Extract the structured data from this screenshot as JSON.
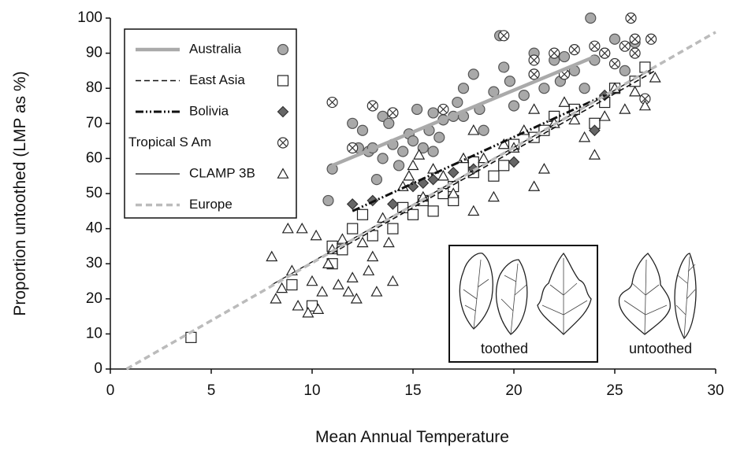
{
  "chart_data": {
    "type": "scatter",
    "xlabel": "Mean Annual Temperature",
    "ylabel": "Proportion untoothed (LMP as %)",
    "xlim": [
      0,
      30
    ],
    "ylim": [
      0,
      100
    ],
    "xticks": [
      0,
      5,
      10,
      15,
      20,
      25,
      30
    ],
    "yticks": [
      0,
      10,
      20,
      30,
      40,
      50,
      60,
      70,
      80,
      90,
      100
    ],
    "annotations": [
      "toothed",
      "untoothed"
    ],
    "series": [
      {
        "name": "Australia",
        "marker": "circle",
        "color": "#a9a9a9",
        "edge_color": "#555555",
        "line_color": "#aaaaaa",
        "line_style": "solid-thick",
        "x": [
          10.8,
          11,
          12,
          12.3,
          12.5,
          12.8,
          13,
          13.2,
          13.5,
          13.5,
          13.8,
          14,
          14,
          14.3,
          14.5,
          14.8,
          15,
          15.2,
          15.5,
          15.8,
          16,
          16,
          16.3,
          16.5,
          17,
          17.2,
          17.5,
          17.5,
          18,
          18.3,
          18.5,
          19,
          19.3,
          19.5,
          19.8,
          20,
          20.5,
          21,
          21,
          21.5,
          22,
          22.3,
          22.5,
          23,
          23.5,
          23.8,
          24,
          24.5,
          25,
          25.5,
          26
        ],
        "y": [
          48,
          57,
          70,
          63,
          68,
          62,
          63,
          54,
          60,
          72,
          70,
          64,
          73,
          58,
          62,
          67,
          65,
          74,
          63,
          68,
          73,
          62,
          66,
          71,
          72,
          76,
          80,
          72,
          84,
          74,
          68,
          79,
          95,
          86,
          82,
          75,
          78,
          90,
          84,
          80,
          88,
          82,
          89,
          85,
          80,
          100,
          88,
          90,
          94,
          85,
          93
        ],
        "fit_x": [
          11,
          24
        ],
        "fit_y": [
          58,
          89
        ]
      },
      {
        "name": "East Asia",
        "marker": "square",
        "color": "#ffffff",
        "edge_color": "#222222",
        "line_color": "#111111",
        "line_style": "dashed",
        "x": [
          4,
          9,
          10,
          11,
          11,
          11.5,
          12,
          12.5,
          13,
          14,
          14.5,
          15,
          15.5,
          16,
          16.5,
          17,
          17,
          18,
          18,
          19,
          19.5,
          20,
          21,
          21.5,
          22,
          23,
          24,
          24.5,
          25,
          26,
          26.5
        ],
        "y": [
          9,
          24,
          18,
          30,
          35,
          34,
          40,
          44,
          38,
          40,
          46,
          44,
          48,
          45,
          50,
          52,
          48,
          56,
          59,
          55,
          58,
          64,
          66,
          68,
          72,
          74,
          70,
          76,
          80,
          82,
          86
        ],
        "fit_x": [
          11,
          27
        ],
        "fit_y": [
          33,
          85
        ]
      },
      {
        "name": "Bolivia",
        "marker": "diamond",
        "color": "#666666",
        "edge_color": "#333333",
        "line_color": "#111111",
        "line_style": "dash-dot",
        "x": [
          12,
          13,
          14,
          15,
          15.5,
          16,
          17,
          18,
          20,
          24,
          24.5
        ],
        "y": [
          47,
          48,
          47,
          52,
          53,
          54,
          56,
          57,
          59,
          68,
          78
        ],
        "fit_x": [
          12,
          24.5
        ],
        "fit_y": [
          45,
          78
        ]
      },
      {
        "name": "Tropical S Am",
        "marker": "circle-x",
        "color": "#ffffff",
        "edge_color": "#333333",
        "x": [
          11,
          12,
          13,
          14,
          16.5,
          19.5,
          21,
          21,
          22,
          22.5,
          23,
          24,
          24.5,
          25,
          25.5,
          25.8,
          26,
          26,
          26.5,
          26.8
        ],
        "y": [
          76,
          63,
          75,
          73,
          74,
          95,
          88,
          84,
          90,
          84,
          91,
          92,
          90,
          87,
          92,
          100,
          94,
          90,
          77,
          94
        ]
      },
      {
        "name": "CLAMP 3B",
        "marker": "triangle",
        "color": "#ffffff",
        "edge_color": "#222222",
        "line_color": "#111111",
        "line_style": "solid-thin",
        "x": [
          8,
          8.2,
          8.5,
          8.8,
          9,
          9.3,
          9.5,
          9.8,
          10,
          10.2,
          10.3,
          10.5,
          10.8,
          11,
          11.3,
          11.5,
          11.8,
          12,
          12.2,
          12.5,
          12.8,
          13,
          13.2,
          13.5,
          13.8,
          14,
          14.5,
          14.8,
          15,
          15.3,
          15.5,
          16,
          16.5,
          17,
          17.5,
          18,
          18,
          18.5,
          19,
          19.5,
          20,
          20.5,
          21,
          21,
          21.5,
          22,
          22.5,
          23,
          23.5,
          24,
          24.5,
          25,
          25.5,
          26,
          26.5,
          27
        ],
        "y": [
          32,
          20,
          23,
          40,
          28,
          18,
          40,
          16,
          25,
          38,
          17,
          22,
          30,
          34,
          24,
          37,
          22,
          26,
          20,
          36,
          28,
          32,
          22,
          43,
          36,
          25,
          52,
          55,
          58,
          61,
          49,
          57,
          55,
          50,
          60,
          45,
          68,
          60,
          49,
          64,
          63,
          68,
          52,
          74,
          57,
          70,
          76,
          71,
          66,
          61,
          72,
          80,
          74,
          79,
          75,
          83
        ],
        "fit_x": [
          8,
          27
        ],
        "fit_y": [
          24,
          86
        ]
      },
      {
        "name": "Europe",
        "line_color": "#bbbbbb",
        "line_style": "dashed-thick",
        "fit_x": [
          0.8,
          30
        ],
        "fit_y": [
          0,
          96
        ]
      }
    ]
  }
}
